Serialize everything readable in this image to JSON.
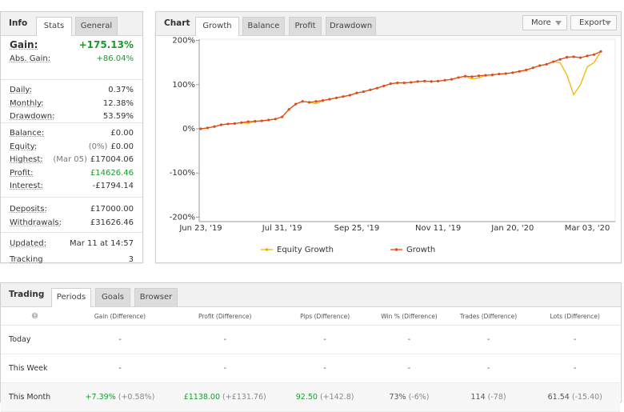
{
  "info_panel": {
    "title": "Info",
    "tabs": [
      "Stats",
      "General"
    ],
    "groups": [
      [
        {
          "label": "Gain:",
          "value": "+175.13%"
        },
        {
          "label": "Abs. Gain:",
          "value": "+86.04%"
        }
      ],
      [
        {
          "label": "Daily:",
          "value": "0.37%"
        },
        {
          "label": "Monthly:",
          "value": "12.38%"
        },
        {
          "label": "Drawdown:",
          "value": "53.59%"
        }
      ],
      [
        {
          "label": "Balance:",
          "value": "£0.00"
        },
        {
          "label": "Equity:",
          "note": "(0%)",
          "value": "£0.00"
        },
        {
          "label": "Highest:",
          "note": "(Mar 05)",
          "value": "£17004.06"
        },
        {
          "label": "Profit:",
          "value": "£14626.46"
        },
        {
          "label": "Interest:",
          "value": "-£1794.14"
        }
      ],
      [
        {
          "label": "Deposits:",
          "value": "£17000.00"
        },
        {
          "label": "Withdrawals:",
          "value": "£31626.46"
        }
      ],
      [
        {
          "label": "Updated:",
          "value": "Mar 11 at 14:57"
        },
        {
          "label": "Tracking",
          "value": "3"
        }
      ]
    ]
  },
  "chart_panel": {
    "title": "Chart",
    "tabs": [
      "Growth",
      "Balance",
      "Profit",
      "Drawdown"
    ],
    "buttons": [
      "More",
      "Export"
    ],
    "chart_data": {
      "type": "line",
      "categories": [
        "Jun 23, '19",
        null,
        null,
        null,
        null,
        null,
        null,
        null,
        null,
        null,
        null,
        null,
        "Jul 31, '19",
        null,
        null,
        null,
        null,
        null,
        null,
        null,
        null,
        null,
        null,
        "Sep 25, '19",
        null,
        null,
        null,
        null,
        null,
        null,
        null,
        null,
        null,
        null,
        null,
        "Nov 11, '19",
        null,
        null,
        null,
        null,
        null,
        null,
        null,
        null,
        null,
        null,
        "Jan 20, '20",
        null,
        null,
        null,
        null,
        null,
        null,
        null,
        null,
        null,
        null,
        "Mar 03, '20",
        null,
        null
      ],
      "ylim": [
        -210,
        210
      ],
      "yticks": [
        {
          "value": 200,
          "label": "200%"
        },
        {
          "value": 100,
          "label": "100%"
        },
        {
          "value": 0,
          "label": "0%"
        },
        {
          "value": -100,
          "label": "-100%"
        },
        {
          "value": -200,
          "label": "-200%"
        }
      ],
      "series": [
        {
          "name": "Equity Growth",
          "color": "#f5b400",
          "values": [
            0,
            2,
            5,
            9,
            11,
            12,
            14,
            12,
            17,
            18,
            20,
            22,
            27,
            44,
            56,
            62,
            60,
            57,
            64,
            67,
            70,
            73,
            76,
            81,
            84,
            88,
            92,
            97,
            102,
            104,
            104,
            105,
            107,
            108,
            107,
            108,
            110,
            112,
            116,
            119,
            113,
            115,
            121,
            122,
            124,
            125,
            127,
            130,
            133,
            138,
            143,
            146,
            152,
            150,
            122,
            77,
            100,
            140,
            150,
            175
          ]
        },
        {
          "name": "Growth",
          "color": "#e04a1a",
          "values": [
            0,
            2,
            5,
            9,
            11,
            12,
            14,
            16,
            17,
            18,
            20,
            22,
            27,
            44,
            56,
            62,
            60,
            62,
            64,
            67,
            70,
            73,
            76,
            81,
            84,
            88,
            92,
            97,
            102,
            104,
            104,
            105,
            107,
            108,
            107,
            108,
            110,
            112,
            116,
            119,
            118,
            120,
            121,
            122,
            124,
            125,
            127,
            130,
            133,
            138,
            143,
            146,
            152,
            157,
            162,
            163,
            161,
            165,
            168,
            175
          ]
        }
      ]
    }
  },
  "trading_panel": {
    "title": "Trading",
    "tabs": [
      "Periods",
      "Goals",
      "Browser"
    ],
    "table": {
      "headers": [
        "Gain (Difference)",
        "Profit (Difference)",
        "Pips (Difference)",
        "Win % (Difference)",
        "Trades (Difference)",
        "Lots (Difference)"
      ],
      "rows": [
        {
          "label": "Today",
          "cells": [
            [
              "-"
            ],
            [
              "-"
            ],
            [
              "-"
            ],
            [
              "-"
            ],
            [
              "-"
            ],
            [
              "-"
            ]
          ]
        },
        {
          "label": "This Week",
          "cells": [
            [
              "-"
            ],
            [
              "-"
            ],
            [
              "-"
            ],
            [
              "-"
            ],
            [
              "-"
            ],
            [
              "-"
            ]
          ]
        },
        {
          "label": "This Month",
          "cells": [
            [
              "+7.39%",
              "(+0.58%)"
            ],
            [
              "£1138.00",
              "(+£131.76)"
            ],
            [
              "92.50",
              "(+142.8)"
            ],
            [
              "73%",
              "(-6%)"
            ],
            [
              "114",
              "(-78)"
            ],
            [
              "61.54",
              "(-15.40)"
            ]
          ]
        }
      ]
    }
  }
}
